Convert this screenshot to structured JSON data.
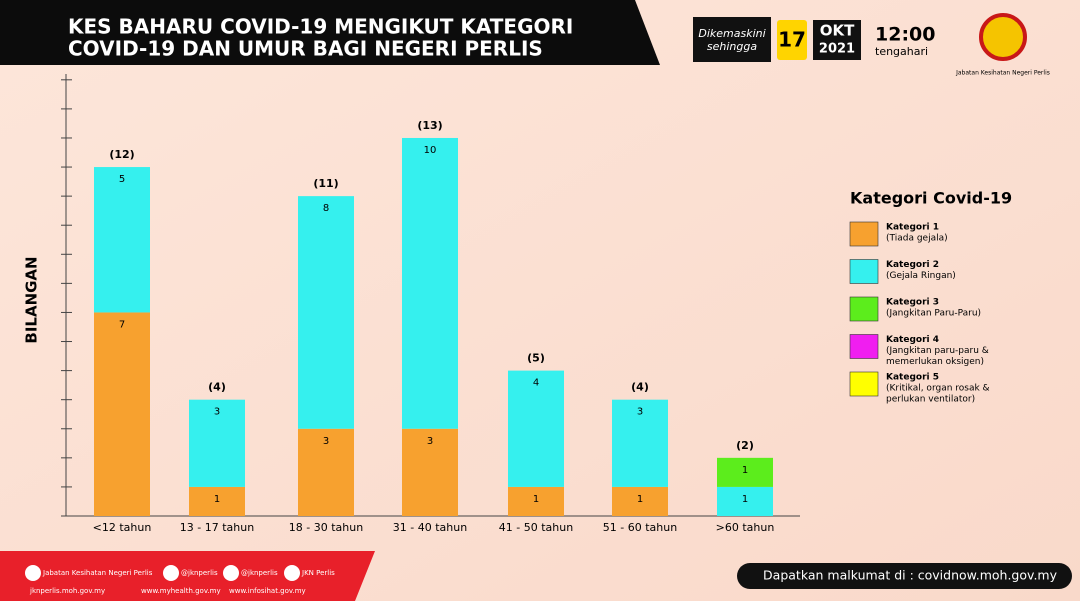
{
  "header": {
    "title_lines": [
      "KES BAHARU COVID-19 MENGIKUT KATEGORI",
      "COVID-19 DAN UMUR BAGI NEGERI PERLIS"
    ],
    "updated_label_lines": [
      "Dikemaskini",
      "sehingga"
    ],
    "day": "17",
    "month": "OKT",
    "year": "2021",
    "time": "12:00",
    "time_note": "tengahari",
    "agency": "Jabatan Kesihatan Negeri Perlis"
  },
  "chart_data": {
    "type": "stacked_bar",
    "y_label": "BILANGAN",
    "categories": [
      "<12 tahun",
      "13 - 17 tahun",
      "18 - 30 tahun",
      "31 - 40 tahun",
      "41 - 50 tahun",
      "51 - 60 tahun",
      ">60 tahun"
    ],
    "total_labels": [
      "(12)",
      "(4)",
      "(11)",
      "(13)",
      "(5)",
      "(4)",
      "(2)"
    ],
    "ylim": [
      0,
      15.2
    ],
    "yticks": [
      0,
      1,
      2,
      3,
      4,
      5,
      6,
      7,
      8,
      9,
      10,
      11,
      12,
      13,
      14,
      15
    ],
    "legend_title": "Kategori Covid-19",
    "series": [
      {
        "name": "Kategori 1",
        "description": [
          "(Tiada gejala)"
        ],
        "color": "#f7a12f",
        "values": [
          7,
          1,
          3,
          3,
          1,
          1,
          null
        ]
      },
      {
        "name": "Kategori 2",
        "description": [
          "(Gejala Ringan)"
        ],
        "color": "#35f0ee",
        "values": [
          5,
          3,
          8,
          10,
          4,
          3,
          1
        ]
      },
      {
        "name": "Kategori 3",
        "description": [
          "(Jangkitan Paru-Paru)"
        ],
        "color": "#5ced1c",
        "values": [
          null,
          null,
          null,
          null,
          null,
          null,
          1
        ]
      },
      {
        "name": "Kategori 4",
        "description": [
          "(Jangkitan paru-paru &",
          "memerlukan oksigen)"
        ],
        "color": "#f01ef0",
        "values": [
          null,
          null,
          null,
          null,
          null,
          null,
          null
        ]
      },
      {
        "name": "Kategori 5",
        "description": [
          "(Kritikal, organ rosak &",
          "perlukan ventilator)"
        ],
        "color": "#ffff00",
        "values": [
          null,
          null,
          null,
          null,
          null,
          null,
          null
        ]
      }
    ]
  },
  "footer": {
    "socials": [
      "Jabatan Kesihatan Negeri Perlis",
      "@jknperlis",
      "@jknperlis",
      "JKN Perlis"
    ],
    "links": [
      "jknperlis.moh.gov.my",
      "www.myhealth.gov.my",
      "www.infosihat.gov.my"
    ],
    "info": "Dapatkan malkumat di : covidnow.moh.gov.my"
  }
}
